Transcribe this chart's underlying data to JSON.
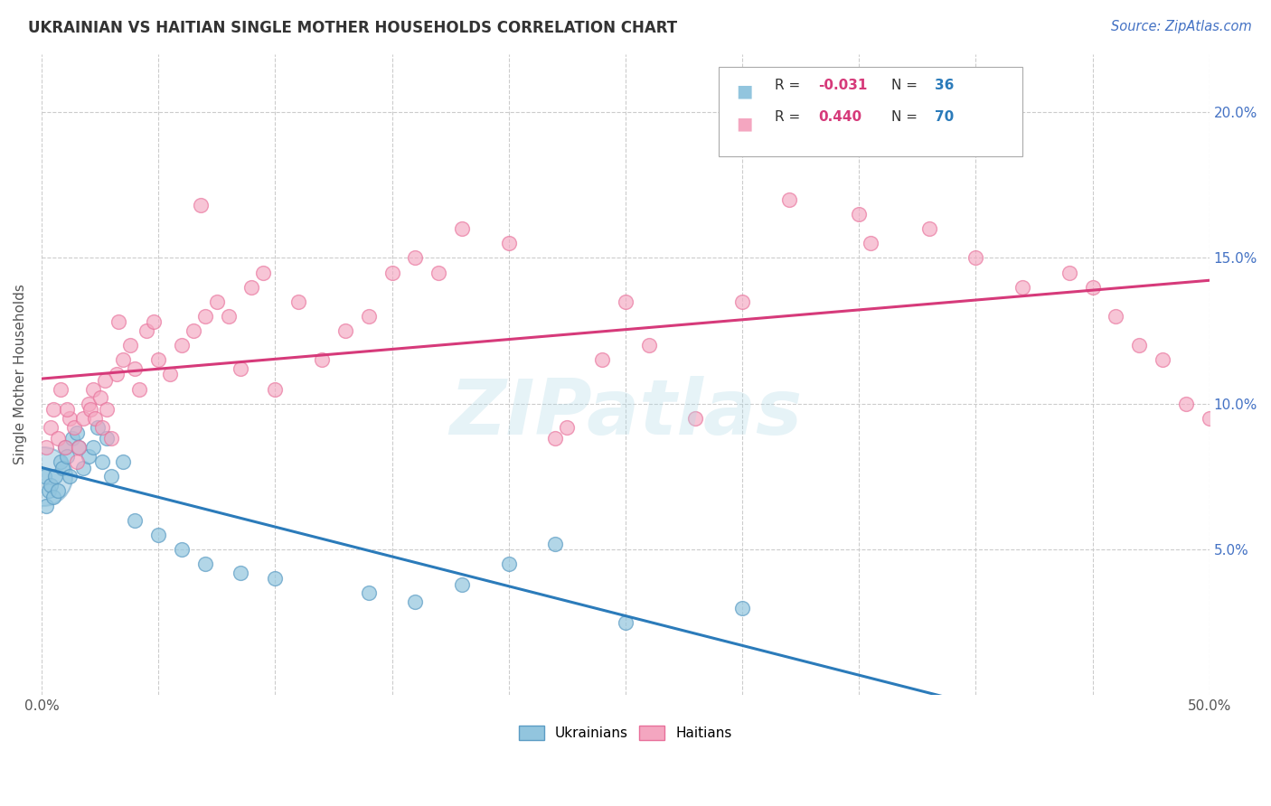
{
  "title": "UKRAINIAN VS HAITIAN SINGLE MOTHER HOUSEHOLDS CORRELATION CHART",
  "source": "Source: ZipAtlas.com",
  "ylabel": "Single Mother Households",
  "watermark": "ZIPatlas",
  "ukrainian_color": "#92c5de",
  "haitian_color": "#f4a6c0",
  "ukrainian_fill": "#92c5de",
  "haitian_fill": "#f4a6c0",
  "ukrainian_edge": "#5b9cc4",
  "haitian_edge": "#e8709a",
  "ukrainian_line_color": "#2b7bba",
  "haitian_line_color": "#d63a7a",
  "xlim": [
    0,
    50
  ],
  "ylim": [
    0,
    22
  ],
  "ytick_vals": [
    5.0,
    10.0,
    15.0,
    20.0
  ],
  "legend_r_u": "R = -0.031",
  "legend_n_u": "N = 36",
  "legend_r_h": "R =  0.440",
  "legend_n_h": "N = 70",
  "ux": [
    0.1,
    0.2,
    0.3,
    0.4,
    0.5,
    0.6,
    0.7,
    0.8,
    0.9,
    1.0,
    1.1,
    1.2,
    1.3,
    1.5,
    1.6,
    1.8,
    2.0,
    2.2,
    2.4,
    2.6,
    2.8,
    3.0,
    3.5,
    4.0,
    5.0,
    6.0,
    7.0,
    8.5,
    10.0,
    14.0,
    16.0,
    18.0,
    20.0,
    22.0,
    25.0,
    30.0
  ],
  "uy": [
    7.5,
    6.5,
    7.0,
    7.2,
    6.8,
    7.5,
    7.0,
    8.0,
    7.8,
    8.5,
    8.2,
    7.5,
    8.8,
    9.0,
    8.5,
    7.8,
    8.2,
    8.5,
    9.2,
    8.0,
    8.8,
    7.5,
    8.0,
    6.0,
    5.5,
    5.0,
    4.5,
    4.2,
    4.0,
    3.5,
    3.2,
    3.8,
    4.5,
    5.2,
    2.5,
    3.0
  ],
  "u_big_x": 0.05,
  "u_big_y": 7.5,
  "hx": [
    0.2,
    0.4,
    0.5,
    0.7,
    0.8,
    1.0,
    1.2,
    1.4,
    1.5,
    1.6,
    1.8,
    2.0,
    2.1,
    2.2,
    2.3,
    2.5,
    2.6,
    2.8,
    3.0,
    3.2,
    3.5,
    3.8,
    4.0,
    4.2,
    4.5,
    5.0,
    5.5,
    6.0,
    6.5,
    7.0,
    7.5,
    8.0,
    8.5,
    9.0,
    10.0,
    11.0,
    12.0,
    13.0,
    14.0,
    15.0,
    16.0,
    17.0,
    18.0,
    20.0,
    22.0,
    24.0,
    25.0,
    26.0,
    28.0,
    30.0,
    32.0,
    35.0,
    38.0,
    40.0,
    42.0,
    44.0,
    45.0,
    46.0,
    47.0,
    48.0,
    49.0,
    50.0,
    9.5,
    3.3,
    2.7,
    1.1,
    6.8,
    4.8,
    22.5,
    35.5
  ],
  "hy": [
    8.5,
    9.2,
    9.8,
    8.8,
    10.5,
    8.5,
    9.5,
    9.2,
    8.0,
    8.5,
    9.5,
    10.0,
    9.8,
    10.5,
    9.5,
    10.2,
    9.2,
    9.8,
    8.8,
    11.0,
    11.5,
    12.0,
    11.2,
    10.5,
    12.5,
    11.5,
    11.0,
    12.0,
    12.5,
    13.0,
    13.5,
    13.0,
    11.2,
    14.0,
    10.5,
    13.5,
    11.5,
    12.5,
    13.0,
    14.5,
    15.0,
    14.5,
    16.0,
    15.5,
    8.8,
    11.5,
    13.5,
    12.0,
    9.5,
    13.5,
    17.0,
    16.5,
    16.0,
    15.0,
    14.0,
    14.5,
    14.0,
    13.0,
    12.0,
    11.5,
    10.0,
    9.5,
    14.5,
    12.8,
    10.8,
    9.8,
    16.8,
    12.8,
    9.2,
    15.5
  ]
}
